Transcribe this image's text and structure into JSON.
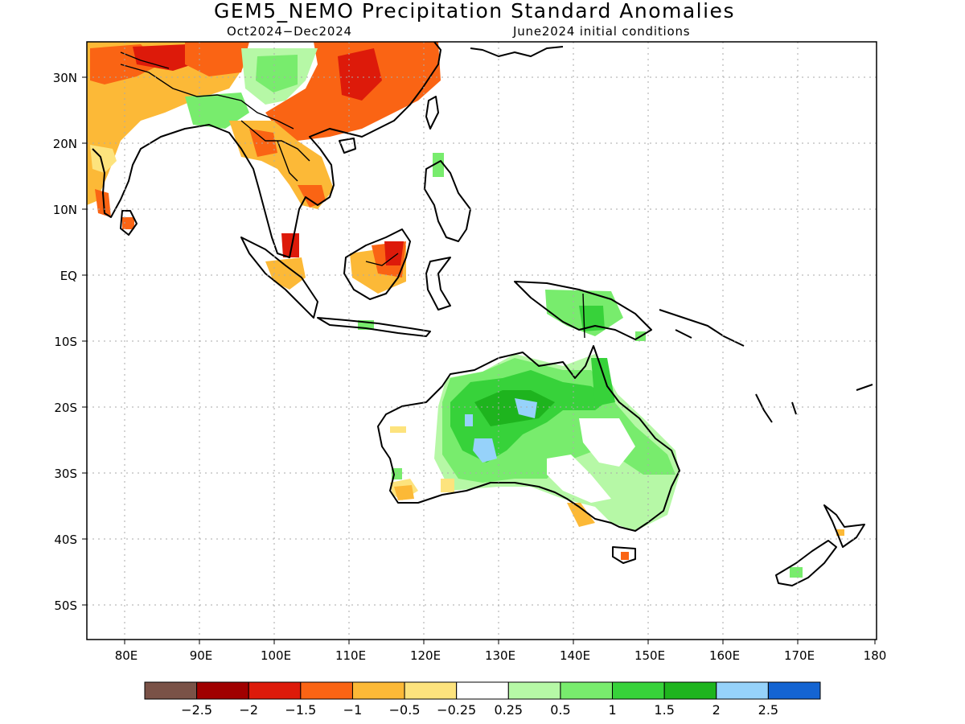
{
  "title": "GEM5_NEMO Precipitation Standard Anomalies",
  "subtitle_left": "Oct2024−Dec2024",
  "subtitle_right": "June2024 initial conditions",
  "lat_labels": [
    "30N",
    "20N",
    "10N",
    "EQ",
    "10S",
    "20S",
    "30S",
    "40S",
    "50S"
  ],
  "lon_labels": [
    "80E",
    "90E",
    "100E",
    "110E",
    "120E",
    "130E",
    "140E",
    "150E",
    "160E",
    "170E",
    "180"
  ],
  "colorbar": {
    "colors": [
      "#7a5247",
      "#a00000",
      "#dd1a0a",
      "#fa6414",
      "#fcb937",
      "#fde37d",
      "#ffffff",
      "#b6f8a6",
      "#78ec6d",
      "#37d23a",
      "#1eb41e",
      "#96d2fa",
      "#1464d2"
    ],
    "labels": [
      "−2.5",
      "−2",
      "−1.5",
      "−1",
      "−0.5",
      "−0.25",
      "0.25",
      "0.5",
      "1",
      "1.5",
      "2",
      "2.5"
    ]
  },
  "palette": {
    "dark_red": "#dd1a0a",
    "orange": "#fa6414",
    "light_orange": "#fcb937",
    "yellow": "#fde37d",
    "light_green": "#b6f8a6",
    "green": "#78ec6d",
    "mid_green": "#37d23a",
    "dark_green": "#1eb41e",
    "light_blue": "#96d2fa"
  }
}
